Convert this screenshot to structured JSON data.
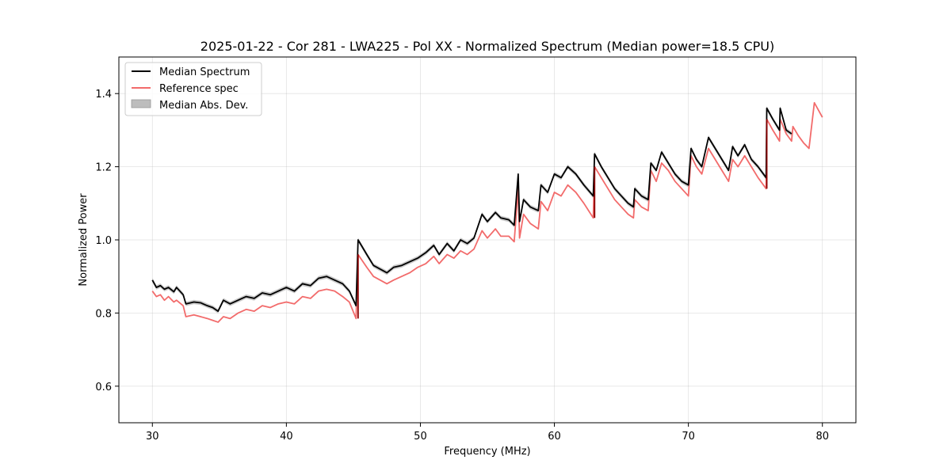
{
  "chart_data": {
    "type": "line",
    "title": "2025-01-22 - Cor 281 - LWA225 - Pol XX - Normalized Spectrum (Median power=18.5 CPU)",
    "xlabel": "Frequency (MHz)",
    "ylabel": "Normalized Power",
    "xlim": [
      27.5,
      82.5
    ],
    "ylim": [
      0.5,
      1.5
    ],
    "xticks": [
      30,
      40,
      50,
      60,
      70,
      80
    ],
    "yticks": [
      0.6,
      0.8,
      1.0,
      1.2,
      1.4
    ],
    "xtick_labels": [
      "30",
      "40",
      "50",
      "60",
      "70",
      "80"
    ],
    "ytick_labels": [
      "0.6",
      "0.8",
      "1.0",
      "1.2",
      "1.4"
    ],
    "grid": true,
    "legend_position": "top-left",
    "legend": [
      "Median Spectrum",
      "Reference spec",
      "Median Abs. Dev."
    ],
    "colors": {
      "median": "#000000",
      "reference": "#f26b6b",
      "mad": "#bdbdbd",
      "overlap": "#8b0000"
    },
    "series": [
      {
        "name": "Median Spectrum",
        "x": [
          30.0,
          30.3,
          30.6,
          30.9,
          31.2,
          31.6,
          31.8,
          32.3,
          32.5,
          33.1,
          33.6,
          34.1,
          34.5,
          34.9,
          35.3,
          35.8,
          36.4,
          37.0,
          37.6,
          38.2,
          38.8,
          39.4,
          40.0,
          40.6,
          41.2,
          41.8,
          42.4,
          43.0,
          43.6,
          44.2,
          44.7,
          45.2,
          45.35,
          46.0,
          46.5,
          47.0,
          47.5,
          48.0,
          48.6,
          49.2,
          49.8,
          50.4,
          51.0,
          51.4,
          52.0,
          52.5,
          53.0,
          53.5,
          54.0,
          54.6,
          55.0,
          55.6,
          56.0,
          56.6,
          57.0,
          57.3,
          57.4,
          57.7,
          58.2,
          58.8,
          59.0,
          59.5,
          60.0,
          60.5,
          61.0,
          61.6,
          62.2,
          62.9,
          63.0,
          63.5,
          64.0,
          64.5,
          65.0,
          65.5,
          65.9,
          66.0,
          66.5,
          67.0,
          67.2,
          67.6,
          68.0,
          68.5,
          69.0,
          69.5,
          70.0,
          70.2,
          70.6,
          71.0,
          71.5,
          72.0,
          72.5,
          73.0,
          73.3,
          73.7,
          74.2,
          74.7,
          75.2,
          75.8,
          75.85,
          76.3,
          76.8,
          76.85,
          77.3,
          77.7
        ],
        "values": [
          0.89,
          0.87,
          0.875,
          0.865,
          0.87,
          0.858,
          0.87,
          0.85,
          0.825,
          0.83,
          0.828,
          0.82,
          0.815,
          0.805,
          0.835,
          0.825,
          0.835,
          0.845,
          0.84,
          0.855,
          0.85,
          0.86,
          0.87,
          0.86,
          0.88,
          0.875,
          0.895,
          0.9,
          0.89,
          0.88,
          0.86,
          0.82,
          1.0,
          0.96,
          0.93,
          0.92,
          0.91,
          0.925,
          0.93,
          0.94,
          0.95,
          0.965,
          0.985,
          0.96,
          0.99,
          0.97,
          1.0,
          0.99,
          1.005,
          1.07,
          1.05,
          1.075,
          1.06,
          1.055,
          1.04,
          1.18,
          1.05,
          1.11,
          1.09,
          1.08,
          1.15,
          1.13,
          1.18,
          1.17,
          1.2,
          1.18,
          1.15,
          1.12,
          1.235,
          1.2,
          1.17,
          1.14,
          1.12,
          1.1,
          1.09,
          1.14,
          1.12,
          1.11,
          1.21,
          1.19,
          1.24,
          1.21,
          1.18,
          1.16,
          1.15,
          1.25,
          1.22,
          1.2,
          1.28,
          1.25,
          1.22,
          1.19,
          1.255,
          1.23,
          1.26,
          1.22,
          1.2,
          1.17,
          1.36,
          1.33,
          1.3,
          1.36,
          1.3,
          1.29
        ]
      },
      {
        "name": "Reference spec",
        "x": [
          30.0,
          30.3,
          30.6,
          30.9,
          31.2,
          31.6,
          31.8,
          32.3,
          32.5,
          33.1,
          33.6,
          34.1,
          34.5,
          34.9,
          35.3,
          35.8,
          36.4,
          37.0,
          37.6,
          38.2,
          38.8,
          39.4,
          40.0,
          40.6,
          41.2,
          41.8,
          42.4,
          43.0,
          43.6,
          44.2,
          44.7,
          45.2,
          45.35,
          46.0,
          46.5,
          47.0,
          47.5,
          48.0,
          48.6,
          49.2,
          49.8,
          50.4,
          51.0,
          51.4,
          52.0,
          52.5,
          53.0,
          53.5,
          54.0,
          54.6,
          55.0,
          55.6,
          56.0,
          56.6,
          57.0,
          57.3,
          57.4,
          57.7,
          58.2,
          58.8,
          59.0,
          59.5,
          60.0,
          60.5,
          61.0,
          61.6,
          62.2,
          62.9,
          63.0,
          63.5,
          64.0,
          64.5,
          65.0,
          65.5,
          65.9,
          66.0,
          66.5,
          67.0,
          67.2,
          67.6,
          68.0,
          68.5,
          69.0,
          69.5,
          70.0,
          70.2,
          70.6,
          71.0,
          71.5,
          72.0,
          72.5,
          73.0,
          73.3,
          73.7,
          74.2,
          74.7,
          75.2,
          75.8,
          75.85,
          76.3,
          76.8,
          76.85,
          77.3,
          77.7,
          77.8,
          78.2,
          78.6,
          79.0,
          79.4,
          80.0
        ],
        "values": [
          0.86,
          0.845,
          0.85,
          0.835,
          0.845,
          0.83,
          0.835,
          0.82,
          0.79,
          0.795,
          0.79,
          0.785,
          0.78,
          0.775,
          0.79,
          0.785,
          0.8,
          0.81,
          0.805,
          0.82,
          0.815,
          0.825,
          0.83,
          0.825,
          0.845,
          0.84,
          0.86,
          0.865,
          0.86,
          0.845,
          0.83,
          0.785,
          0.96,
          0.925,
          0.9,
          0.89,
          0.88,
          0.89,
          0.9,
          0.91,
          0.925,
          0.935,
          0.955,
          0.935,
          0.96,
          0.95,
          0.97,
          0.96,
          0.975,
          1.025,
          1.005,
          1.03,
          1.01,
          1.01,
          0.995,
          1.14,
          1.005,
          1.07,
          1.045,
          1.03,
          1.105,
          1.08,
          1.13,
          1.12,
          1.15,
          1.13,
          1.1,
          1.06,
          1.2,
          1.17,
          1.14,
          1.11,
          1.09,
          1.07,
          1.06,
          1.11,
          1.09,
          1.08,
          1.19,
          1.16,
          1.21,
          1.19,
          1.16,
          1.14,
          1.12,
          1.23,
          1.2,
          1.18,
          1.25,
          1.22,
          1.19,
          1.16,
          1.22,
          1.2,
          1.23,
          1.2,
          1.17,
          1.14,
          1.33,
          1.3,
          1.27,
          1.33,
          1.29,
          1.27,
          1.31,
          1.285,
          1.265,
          1.25,
          1.375,
          1.335
        ]
      },
      {
        "name": "Median Abs. Dev.",
        "x_from_series": "Median Spectrum",
        "half_width": 0.006
      }
    ]
  }
}
